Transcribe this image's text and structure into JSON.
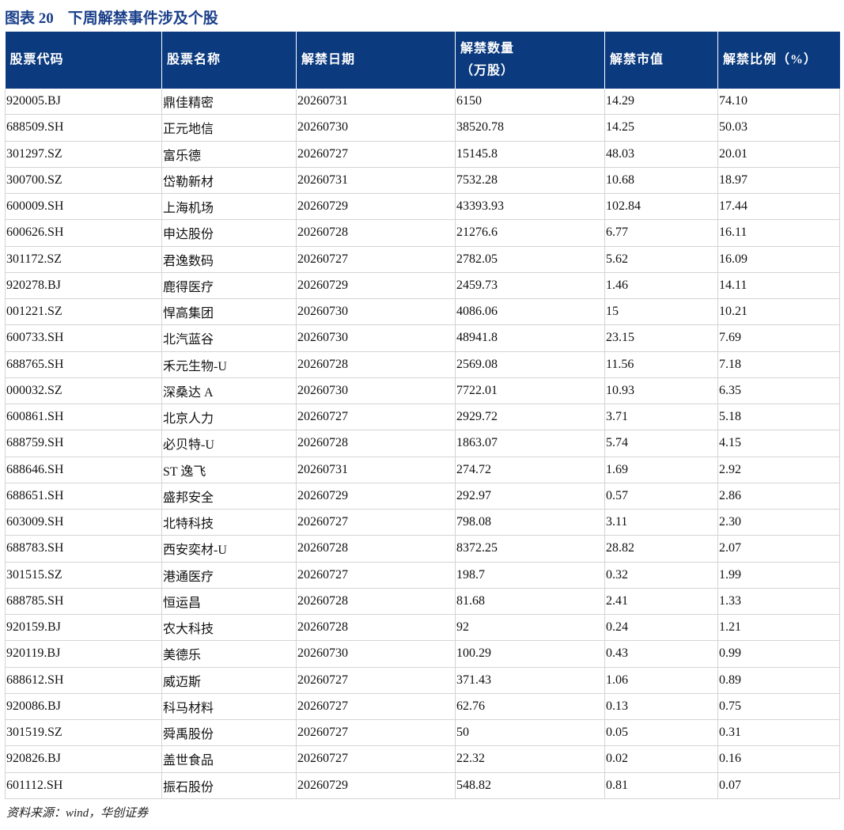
{
  "header": {
    "label": "图表 20",
    "title": "下周解禁事件涉及个股"
  },
  "table": {
    "columns": [
      "股票代码",
      "股票名称",
      "解禁日期",
      "解禁数量\n（万股）",
      "解禁市值",
      "解禁比例（%）"
    ],
    "rows": [
      [
        "920005.BJ",
        "鼎佳精密",
        "20260731",
        "6150",
        "14.29",
        "74.10"
      ],
      [
        "688509.SH",
        "正元地信",
        "20260730",
        "38520.78",
        "14.25",
        "50.03"
      ],
      [
        "301297.SZ",
        "富乐德",
        "20260727",
        "15145.8",
        "48.03",
        "20.01"
      ],
      [
        "300700.SZ",
        "岱勒新材",
        "20260731",
        "7532.28",
        "10.68",
        "18.97"
      ],
      [
        "600009.SH",
        "上海机场",
        "20260729",
        "43393.93",
        "102.84",
        "17.44"
      ],
      [
        "600626.SH",
        "申达股份",
        "20260728",
        "21276.6",
        "6.77",
        "16.11"
      ],
      [
        "301172.SZ",
        "君逸数码",
        "20260727",
        "2782.05",
        "5.62",
        "16.09"
      ],
      [
        "920278.BJ",
        "鹿得医疗",
        "20260729",
        "2459.73",
        "1.46",
        "14.11"
      ],
      [
        "001221.SZ",
        "悍高集团",
        "20260730",
        "4086.06",
        "15",
        "10.21"
      ],
      [
        "600733.SH",
        "北汽蓝谷",
        "20260730",
        "48941.8",
        "23.15",
        "7.69"
      ],
      [
        "688765.SH",
        "禾元生物-U",
        "20260728",
        "2569.08",
        "11.56",
        "7.18"
      ],
      [
        "000032.SZ",
        "深桑达 A",
        "20260730",
        "7722.01",
        "10.93",
        "6.35"
      ],
      [
        "600861.SH",
        "北京人力",
        "20260727",
        "2929.72",
        "3.71",
        "5.18"
      ],
      [
        "688759.SH",
        "必贝特-U",
        "20260728",
        "1863.07",
        "5.74",
        "4.15"
      ],
      [
        "688646.SH",
        "ST 逸飞",
        "20260731",
        "274.72",
        "1.69",
        "2.92"
      ],
      [
        "688651.SH",
        "盛邦安全",
        "20260729",
        "292.97",
        "0.57",
        "2.86"
      ],
      [
        "603009.SH",
        "北特科技",
        "20260727",
        "798.08",
        "3.11",
        "2.30"
      ],
      [
        "688783.SH",
        "西安奕材-U",
        "20260728",
        "8372.25",
        "28.82",
        "2.07"
      ],
      [
        "301515.SZ",
        "港通医疗",
        "20260727",
        "198.7",
        "0.32",
        "1.99"
      ],
      [
        "688785.SH",
        "恒运昌",
        "20260728",
        "81.68",
        "2.41",
        "1.33"
      ],
      [
        "920159.BJ",
        "农大科技",
        "20260728",
        "92",
        "0.24",
        "1.21"
      ],
      [
        "920119.BJ",
        "美德乐",
        "20260730",
        "100.29",
        "0.43",
        "0.99"
      ],
      [
        "688612.SH",
        "威迈斯",
        "20260727",
        "371.43",
        "1.06",
        "0.89"
      ],
      [
        "920086.BJ",
        "科马材料",
        "20260727",
        "62.76",
        "0.13",
        "0.75"
      ],
      [
        "301519.SZ",
        "舜禹股份",
        "20260727",
        "50",
        "0.05",
        "0.31"
      ],
      [
        "920826.BJ",
        "盖世食品",
        "20260727",
        "22.32",
        "0.02",
        "0.16"
      ],
      [
        "601112.SH",
        "振石股份",
        "20260729",
        "548.82",
        "0.81",
        "0.07"
      ]
    ]
  },
  "footer": {
    "source": "资料来源：wind，华创证券"
  }
}
